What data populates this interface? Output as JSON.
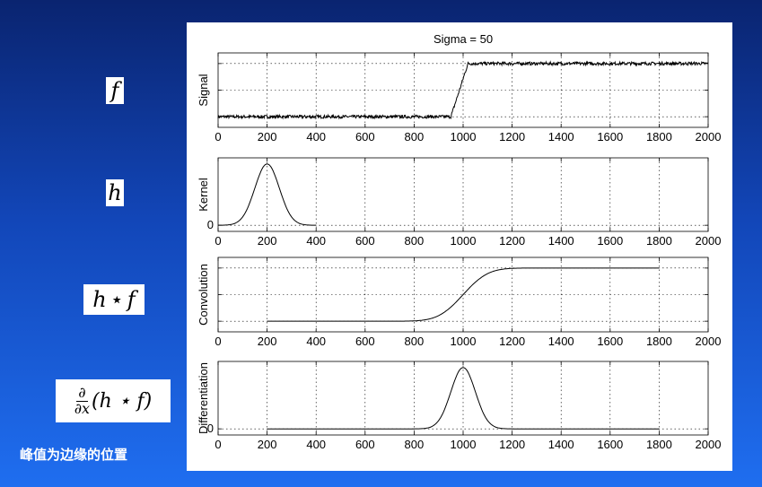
{
  "formulas": {
    "f": "f",
    "h": "h",
    "conv_left": "h",
    "star": "⋆",
    "conv_right": "f",
    "deriv_num": "∂",
    "deriv_den": "∂x",
    "deriv_expr": "(h ⋆ f)"
  },
  "caption": "峰值为边缘的位置",
  "chart_data": [
    {
      "type": "line",
      "title": "Sigma = 50",
      "ylabel": "Signal",
      "xlim": [
        0,
        2000
      ],
      "xticks": [
        0,
        200,
        400,
        600,
        800,
        1000,
        1200,
        1400,
        1600,
        1800,
        2000
      ],
      "ylim": [
        -0.2,
        1.2
      ],
      "grid_y": [
        0,
        0.5,
        1
      ],
      "grid": true,
      "series": [
        {
          "x": [
            0,
            950,
            1020,
            2000
          ],
          "y": [
            0,
            0,
            1,
            1
          ],
          "noise": 0.03,
          "x_range": [
            0,
            2000
          ],
          "kind": "step"
        }
      ]
    },
    {
      "type": "line",
      "ylabel": "Kernel",
      "xlim": [
        0,
        2000
      ],
      "xticks": [
        0,
        200,
        400,
        600,
        800,
        1000,
        1200,
        1400,
        1600,
        1800,
        2000
      ],
      "yticks": [
        0
      ],
      "ylim": [
        -0.1,
        1.1
      ],
      "grid": true,
      "series": [
        {
          "kind": "gaussian",
          "center": 200,
          "sigma": 50,
          "x_range": [
            0,
            400
          ],
          "peak": 1
        }
      ]
    },
    {
      "type": "line",
      "ylabel": "Convolution",
      "xlim": [
        0,
        2000
      ],
      "xticks": [
        0,
        200,
        400,
        600,
        800,
        1000,
        1200,
        1400,
        1600,
        1800,
        2000
      ],
      "ylim": [
        -0.2,
        1.2
      ],
      "grid_y": [
        0,
        0.5,
        1
      ],
      "grid": true,
      "series": [
        {
          "kind": "erf",
          "center": 1000,
          "sigma": 50,
          "x_range": [
            200,
            1800
          ]
        }
      ]
    },
    {
      "type": "line",
      "ylabel": "Differentiation",
      "xlim": [
        0,
        2000
      ],
      "xticks": [
        0,
        200,
        400,
        600,
        800,
        1000,
        1200,
        1400,
        1600,
        1800,
        2000
      ],
      "yticks": [
        0
      ],
      "ylim": [
        -0.1,
        1.1
      ],
      "grid": true,
      "series": [
        {
          "kind": "gaussian",
          "center": 1000,
          "sigma": 50,
          "x_range": [
            200,
            1800
          ],
          "peak": 1
        }
      ]
    }
  ]
}
